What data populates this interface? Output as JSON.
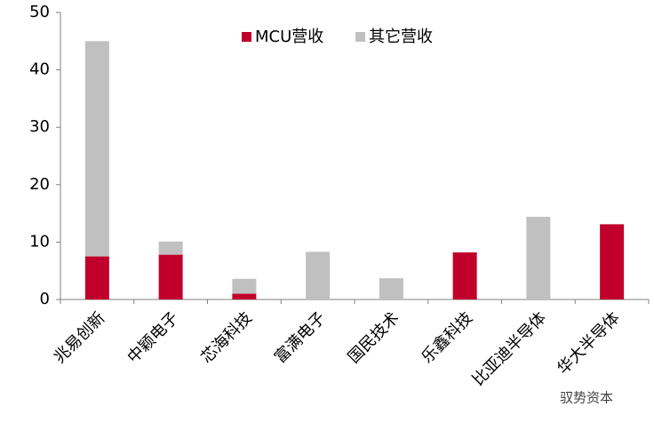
{
  "chart_data": {
    "type": "stacked_bar",
    "categories": [
      "兆易创新",
      "中颖电子",
      "芯海科技",
      "富满电子",
      "国民技术",
      "乐鑫科技",
      "比亚迪半导体",
      "华大半导体"
    ],
    "series": [
      {
        "name": "MCU营收",
        "color": "#c0002b",
        "values": [
          7.5,
          7.8,
          1.0,
          0,
          0,
          8.2,
          0,
          13.1
        ]
      },
      {
        "name": "其它营收",
        "color": "#c0c0c0",
        "values": [
          37.5,
          2.3,
          2.6,
          8.3,
          3.7,
          0,
          14.4,
          0
        ]
      }
    ],
    "ylim": [
      0,
      50
    ],
    "yticks": [
      0,
      10,
      20,
      30,
      40,
      50
    ],
    "grid": false,
    "legend": "top",
    "watermark": "驭势资本"
  }
}
